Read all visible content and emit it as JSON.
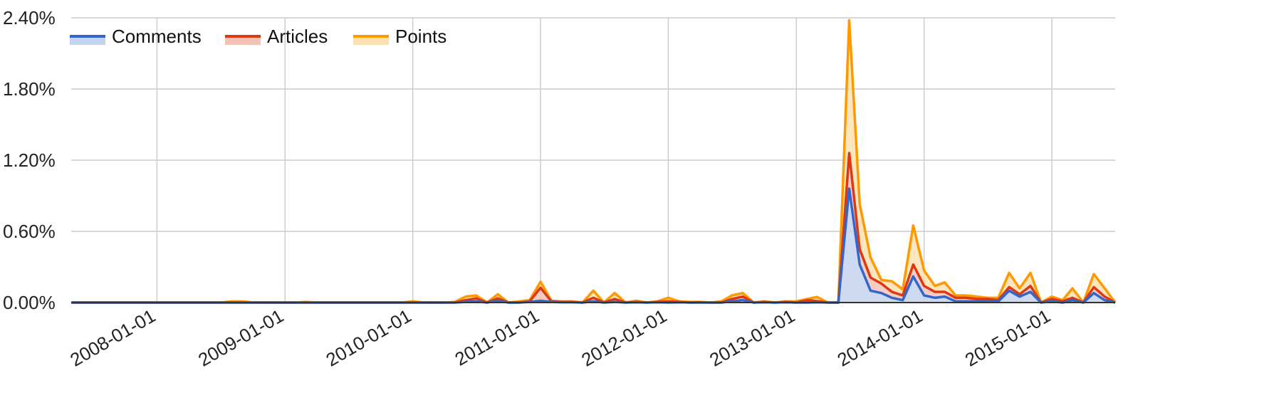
{
  "colors": {
    "background": "#ffffff",
    "grid": "#cccccc",
    "axis": "#333333",
    "comments_line": "#3366cc",
    "comments_fill": "#c5d3f0",
    "articles_line": "#dc3912",
    "articles_fill": "#f4c3b8",
    "points_line": "#ff9900",
    "points_fill": "#fde0b3"
  },
  "chart_data": {
    "type": "area",
    "stacked": true,
    "title": "",
    "xlabel": "",
    "ylabel": "",
    "y_unit": "%",
    "ylim": [
      0,
      2.4
    ],
    "yticks": [
      0,
      0.6,
      1.2,
      1.8,
      2.4
    ],
    "ytick_labels": [
      "0.00%",
      "0.60%",
      "1.20%",
      "1.80%",
      "2.40%"
    ],
    "xlim": [
      "2007-05-01",
      "2015-07-01"
    ],
    "xtick_labels": [
      "2008-01-01",
      "2009-01-01",
      "2010-01-01",
      "2011-01-01",
      "2012-01-01",
      "2013-01-01",
      "2014-01-01",
      "2015-01-01"
    ],
    "grid": true,
    "legend_position": "top-left",
    "legend": [
      {
        "name": "Comments",
        "icon": "area-swatch-blue"
      },
      {
        "name": "Articles",
        "icon": "area-swatch-red"
      },
      {
        "name": "Points",
        "icon": "area-swatch-orange"
      }
    ],
    "x": [
      "2007-05-01",
      "2007-06-01",
      "2007-07-01",
      "2007-08-01",
      "2007-09-01",
      "2007-10-01",
      "2007-11-01",
      "2007-12-01",
      "2008-01-01",
      "2008-02-01",
      "2008-03-01",
      "2008-04-01",
      "2008-05-01",
      "2008-06-01",
      "2008-07-01",
      "2008-08-01",
      "2008-09-01",
      "2008-10-01",
      "2008-11-01",
      "2008-12-01",
      "2009-01-01",
      "2009-02-01",
      "2009-03-01",
      "2009-04-01",
      "2009-05-01",
      "2009-06-01",
      "2009-07-01",
      "2009-08-01",
      "2009-09-01",
      "2009-10-01",
      "2009-11-01",
      "2009-12-01",
      "2010-01-01",
      "2010-02-01",
      "2010-03-01",
      "2010-04-01",
      "2010-05-01",
      "2010-06-01",
      "2010-07-01",
      "2010-08-01",
      "2010-09-01",
      "2010-10-01",
      "2010-11-01",
      "2010-12-01",
      "2011-01-01",
      "2011-02-01",
      "2011-03-01",
      "2011-04-01",
      "2011-05-01",
      "2011-06-01",
      "2011-07-01",
      "2011-08-01",
      "2011-09-01",
      "2011-10-01",
      "2011-11-01",
      "2011-12-01",
      "2012-01-01",
      "2012-02-01",
      "2012-03-01",
      "2012-04-01",
      "2012-05-01",
      "2012-06-01",
      "2012-07-01",
      "2012-08-01",
      "2012-09-01",
      "2012-10-01",
      "2012-11-01",
      "2012-12-01",
      "2013-01-01",
      "2013-02-01",
      "2013-03-01",
      "2013-04-01",
      "2013-05-01",
      "2013-06-01",
      "2013-07-01",
      "2013-08-01",
      "2013-09-01",
      "2013-10-01",
      "2013-11-01",
      "2013-12-01",
      "2014-01-01",
      "2014-02-01",
      "2014-03-01",
      "2014-04-01",
      "2014-05-01",
      "2014-06-01",
      "2014-07-01",
      "2014-08-01",
      "2014-09-01",
      "2014-10-01",
      "2014-11-01",
      "2014-12-01",
      "2015-01-01",
      "2015-02-01",
      "2015-03-01",
      "2015-04-01",
      "2015-05-01",
      "2015-06-01",
      "2015-07-01"
    ],
    "series": [
      {
        "name": "Comments",
        "values": [
          0,
          0,
          0,
          0,
          0,
          0,
          0,
          0,
          0,
          0,
          0,
          0,
          0,
          0,
          0,
          0,
          0,
          0,
          0,
          0,
          0,
          0,
          0,
          0,
          0,
          0,
          0,
          0,
          0,
          0,
          0,
          0,
          0,
          0,
          0,
          0,
          0,
          0.005,
          0.01,
          0,
          0.015,
          0,
          0,
          0.005,
          0.015,
          0.005,
          0.002,
          0.002,
          0,
          0.01,
          0,
          0.005,
          0,
          0.002,
          0,
          0.002,
          0,
          0.002,
          0,
          0,
          0,
          0,
          0.01,
          0.02,
          0,
          0.002,
          0,
          0.002,
          0,
          0,
          0.002,
          0,
          0,
          0.96,
          0.32,
          0.1,
          0.08,
          0.04,
          0.02,
          0.22,
          0.06,
          0.04,
          0.05,
          0.01,
          0.01,
          0.01,
          0.01,
          0.01,
          0.1,
          0.05,
          0.09,
          0,
          0.01,
          0,
          0.02,
          0,
          0.08,
          0.02,
          0
        ]
      },
      {
        "name": "Articles",
        "values": [
          0,
          0,
          0,
          0,
          0,
          0,
          0,
          0,
          0,
          0,
          0,
          0,
          0,
          0,
          0,
          0,
          0,
          0,
          0,
          0,
          0,
          0,
          0,
          0,
          0,
          0,
          0,
          0,
          0,
          0,
          0,
          0,
          0,
          0,
          0,
          0,
          0,
          0.015,
          0.025,
          0,
          0.02,
          0,
          0,
          0.005,
          0.11,
          0.005,
          0.003,
          0.003,
          0,
          0.03,
          0,
          0.025,
          0,
          0.003,
          0,
          0.003,
          0.01,
          0.003,
          0,
          0.002,
          0,
          0,
          0.02,
          0.03,
          0,
          0.003,
          0,
          0.003,
          0,
          0.02,
          0.01,
          0,
          0,
          0.3,
          0.13,
          0.11,
          0.08,
          0.05,
          0.04,
          0.1,
          0.08,
          0.05,
          0.04,
          0.03,
          0.03,
          0.02,
          0.02,
          0.01,
          0.03,
          0.02,
          0.05,
          0,
          0.02,
          0.01,
          0.02,
          0,
          0.05,
          0.03,
          0
        ]
      },
      {
        "name": "Points",
        "values": [
          0,
          0,
          0,
          0,
          0,
          0,
          0,
          0,
          0,
          0,
          0,
          0,
          0,
          0,
          0,
          0.01,
          0.01,
          0,
          0,
          0,
          0,
          0,
          0.005,
          0,
          0,
          0,
          0,
          0,
          0,
          0,
          0,
          0,
          0.01,
          0,
          0,
          0,
          0.005,
          0.03,
          0.025,
          0,
          0.035,
          0,
          0.01,
          0.01,
          0.05,
          0.005,
          0.005,
          0.005,
          0,
          0.06,
          0,
          0.05,
          0,
          0.01,
          0,
          0.005,
          0.03,
          0.005,
          0.005,
          0.003,
          0,
          0.01,
          0.03,
          0.03,
          0,
          0.005,
          0,
          0.005,
          0.01,
          0.01,
          0.035,
          0,
          0,
          1.12,
          0.38,
          0.17,
          0.03,
          0.09,
          0.05,
          0.33,
          0.13,
          0.05,
          0.08,
          0.02,
          0.02,
          0.02,
          0.01,
          0.02,
          0.12,
          0.05,
          0.11,
          0,
          0.02,
          0.01,
          0.08,
          0,
          0.11,
          0.07,
          0
        ]
      }
    ]
  }
}
